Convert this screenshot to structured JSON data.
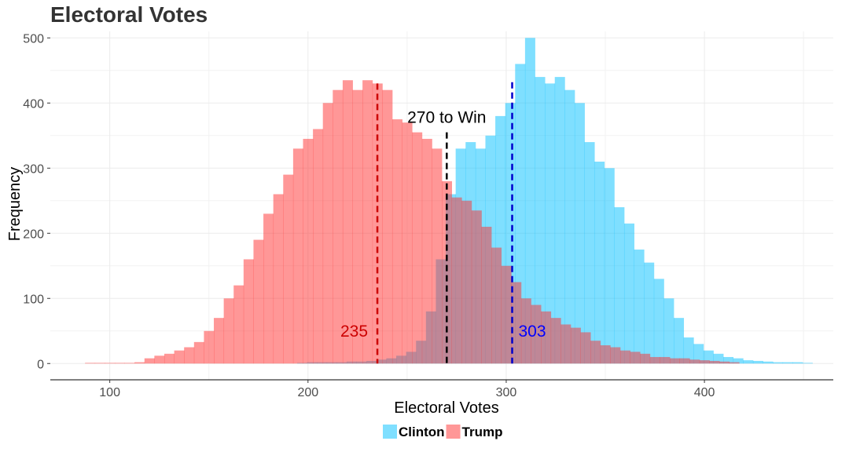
{
  "chart_data": {
    "type": "histogram",
    "title": "Electoral Votes",
    "xlabel": "Electoral Votes",
    "ylabel": "Frequency",
    "xlim": [
      70,
      465
    ],
    "ylim": [
      -25,
      510
    ],
    "x_ticks": [
      100,
      200,
      300,
      400
    ],
    "y_ticks": [
      0,
      100,
      200,
      300,
      400,
      500
    ],
    "grid": true,
    "legend_position": "bottom",
    "bin_start": 87,
    "bin_width": 5,
    "series": [
      {
        "name": "Clinton",
        "color": "#00BFFF",
        "opacity": 0.5,
        "x": [
          197,
          202,
          207,
          212,
          217,
          222,
          227,
          232,
          237,
          242,
          247,
          252,
          257,
          262,
          267,
          272,
          277,
          282,
          287,
          292,
          297,
          302,
          307,
          312,
          317,
          322,
          327,
          332,
          337,
          342,
          347,
          352,
          357,
          362,
          367,
          372,
          377,
          382,
          387,
          392,
          397,
          402,
          407,
          412,
          417,
          422,
          427,
          432,
          437,
          442,
          447,
          452
        ],
        "values": [
          1,
          2,
          2,
          2,
          2,
          3,
          3,
          4,
          6,
          8,
          12,
          18,
          35,
          80,
          160,
          260,
          330,
          340,
          330,
          350,
          380,
          400,
          460,
          500,
          440,
          430,
          440,
          420,
          400,
          340,
          310,
          300,
          240,
          215,
          175,
          155,
          130,
          100,
          70,
          40,
          30,
          20,
          15,
          10,
          8,
          5,
          4,
          3,
          2,
          2,
          2,
          1
        ]
      },
      {
        "name": "Trump",
        "color": "#FF2F2F",
        "opacity": 0.5,
        "x": [
          90,
          95,
          100,
          105,
          110,
          115,
          120,
          125,
          130,
          135,
          140,
          145,
          150,
          155,
          160,
          165,
          170,
          175,
          180,
          185,
          190,
          195,
          200,
          205,
          210,
          215,
          220,
          225,
          230,
          235,
          240,
          245,
          250,
          255,
          260,
          265,
          270,
          275,
          280,
          285,
          290,
          295,
          300,
          305,
          310,
          315,
          320,
          325,
          330,
          335,
          340,
          345,
          350,
          355,
          360,
          365,
          370,
          375,
          380,
          385,
          390,
          395,
          400,
          405,
          410,
          415
        ],
        "values": [
          1,
          1,
          1,
          1,
          1,
          2,
          8,
          12,
          15,
          20,
          25,
          33,
          50,
          70,
          100,
          120,
          160,
          190,
          230,
          260,
          290,
          330,
          345,
          360,
          400,
          420,
          435,
          420,
          435,
          430,
          420,
          375,
          370,
          355,
          345,
          330,
          280,
          255,
          250,
          235,
          210,
          178,
          150,
          125,
          100,
          90,
          80,
          70,
          60,
          55,
          48,
          35,
          28,
          25,
          20,
          18,
          15,
          10,
          10,
          8,
          8,
          6,
          5,
          4,
          3,
          2
        ]
      }
    ],
    "reference_lines": [
      {
        "x": 235,
        "color": "#CC0000",
        "label": "235",
        "label_color": "#CC0000"
      },
      {
        "x": 270,
        "color": "#000000",
        "label": "270 to Win",
        "label_color": "#000000"
      },
      {
        "x": 303,
        "color": "#0000CC",
        "label": "303",
        "label_color": "#0000FF"
      }
    ]
  }
}
